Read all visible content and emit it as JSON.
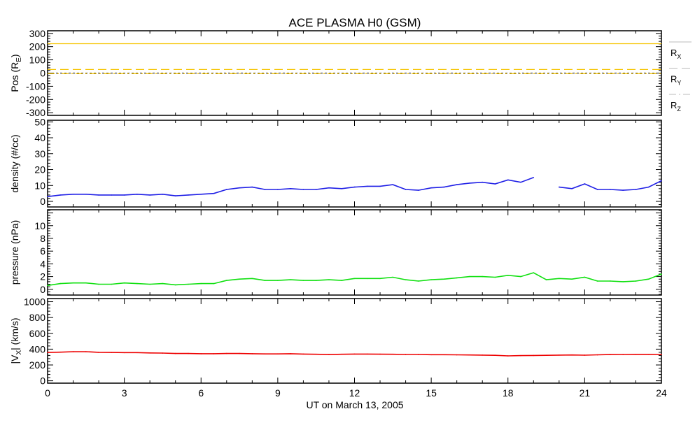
{
  "chart_data": {
    "type": "line",
    "title": "ACE PLASMA H0 (GSM)",
    "xlabel": "UT on March 13, 2005",
    "xlim": [
      0,
      24
    ],
    "xticks": [
      0,
      3,
      6,
      9,
      12,
      15,
      18,
      21,
      24
    ],
    "x": [
      0,
      0.5,
      1,
      1.5,
      2,
      2.5,
      3,
      3.5,
      4,
      4.5,
      5,
      5.5,
      6,
      6.5,
      7,
      7.5,
      8,
      8.5,
      9,
      9.5,
      10,
      10.5,
      11,
      11.5,
      12,
      12.5,
      13,
      13.5,
      14,
      14.5,
      15,
      15.5,
      16,
      16.5,
      17,
      17.5,
      18,
      18.5,
      19,
      19.5,
      20,
      20.5,
      21,
      21.5,
      22,
      22.5,
      23,
      23.5,
      24
    ],
    "panels": [
      {
        "name": "position",
        "ylabel": "Pos (R",
        "ylabel_sub": "E",
        "ylabel_end": ")",
        "ylim": [
          -320,
          320
        ],
        "yticks": [
          300,
          200,
          100,
          0,
          -100,
          -200,
          -300
        ],
        "zero_line": true,
        "series": [
          {
            "name": "R",
            "sub": "X",
            "style": "solid",
            "color": "#f5c400",
            "constant": 222
          },
          {
            "name": "R",
            "sub": "Y",
            "style": "dashed",
            "color": "#f5c400",
            "constant": 27
          },
          {
            "name": "R",
            "sub": "Z",
            "style": "dashdot",
            "color": "#f5c400",
            "constant": -4
          }
        ]
      },
      {
        "name": "density",
        "ylabel": "density (#/cc)",
        "ylim": [
          -3.5,
          51
        ],
        "yticks": [
          0,
          10,
          20,
          30,
          40,
          50
        ],
        "series": [
          {
            "name": "density",
            "color": "#1f1fe6",
            "values": [
              3,
              4,
              4.5,
              4.5,
              4,
              4,
              4,
              4.5,
              4,
              4.5,
              3.5,
              4,
              4.5,
              5,
              7.5,
              8.5,
              9,
              7.5,
              7.5,
              8,
              7.5,
              7.5,
              8.5,
              8,
              9,
              9.5,
              9.5,
              10.5,
              7.5,
              7,
              8.5,
              9,
              10.5,
              11.5,
              12,
              11,
              13.5,
              12,
              15,
              null,
              9,
              8,
              11,
              7.5,
              7.5,
              7,
              7.5,
              9,
              13
            ]
          }
        ]
      },
      {
        "name": "pressure",
        "ylabel": "pressure (nPa)",
        "ylim": [
          -0.9,
          12.5
        ],
        "yticks": [
          0,
          2,
          4,
          6,
          8,
          10
        ],
        "series": [
          {
            "name": "pressure",
            "color": "#10e010",
            "values": [
              0.6,
              0.9,
              1.0,
              1.0,
              0.8,
              0.8,
              1.0,
              0.9,
              0.8,
              0.9,
              0.7,
              0.8,
              0.9,
              0.9,
              1.4,
              1.6,
              1.7,
              1.4,
              1.4,
              1.5,
              1.4,
              1.4,
              1.5,
              1.4,
              1.7,
              1.7,
              1.7,
              1.9,
              1.5,
              1.3,
              1.5,
              1.6,
              1.8,
              2.0,
              2.0,
              1.9,
              2.2,
              2.0,
              2.6,
              1.5,
              1.7,
              1.6,
              1.9,
              1.3,
              1.3,
              1.2,
              1.3,
              1.6,
              2.4
            ]
          }
        ]
      },
      {
        "name": "vx",
        "ylabel": "|V",
        "ylabel_sub": "X",
        "ylabel_end": "| (km/s)",
        "ylim": [
          -30,
          1040
        ],
        "yticks": [
          0,
          200,
          400,
          600,
          800,
          1000
        ],
        "series": [
          {
            "name": "|Vx|",
            "color": "#ee0000",
            "values": [
              358,
              362,
              368,
              368,
              360,
              358,
              356,
              356,
              352,
              350,
              345,
              345,
              342,
              342,
              345,
              345,
              342,
              340,
              340,
              342,
              338,
              335,
              332,
              335,
              338,
              338,
              336,
              335,
              333,
              333,
              330,
              330,
              328,
              326,
              325,
              322,
              315,
              318,
              320,
              322,
              325,
              326,
              324,
              328,
              332,
              333,
              334,
              334,
              333
            ]
          }
        ]
      }
    ]
  }
}
